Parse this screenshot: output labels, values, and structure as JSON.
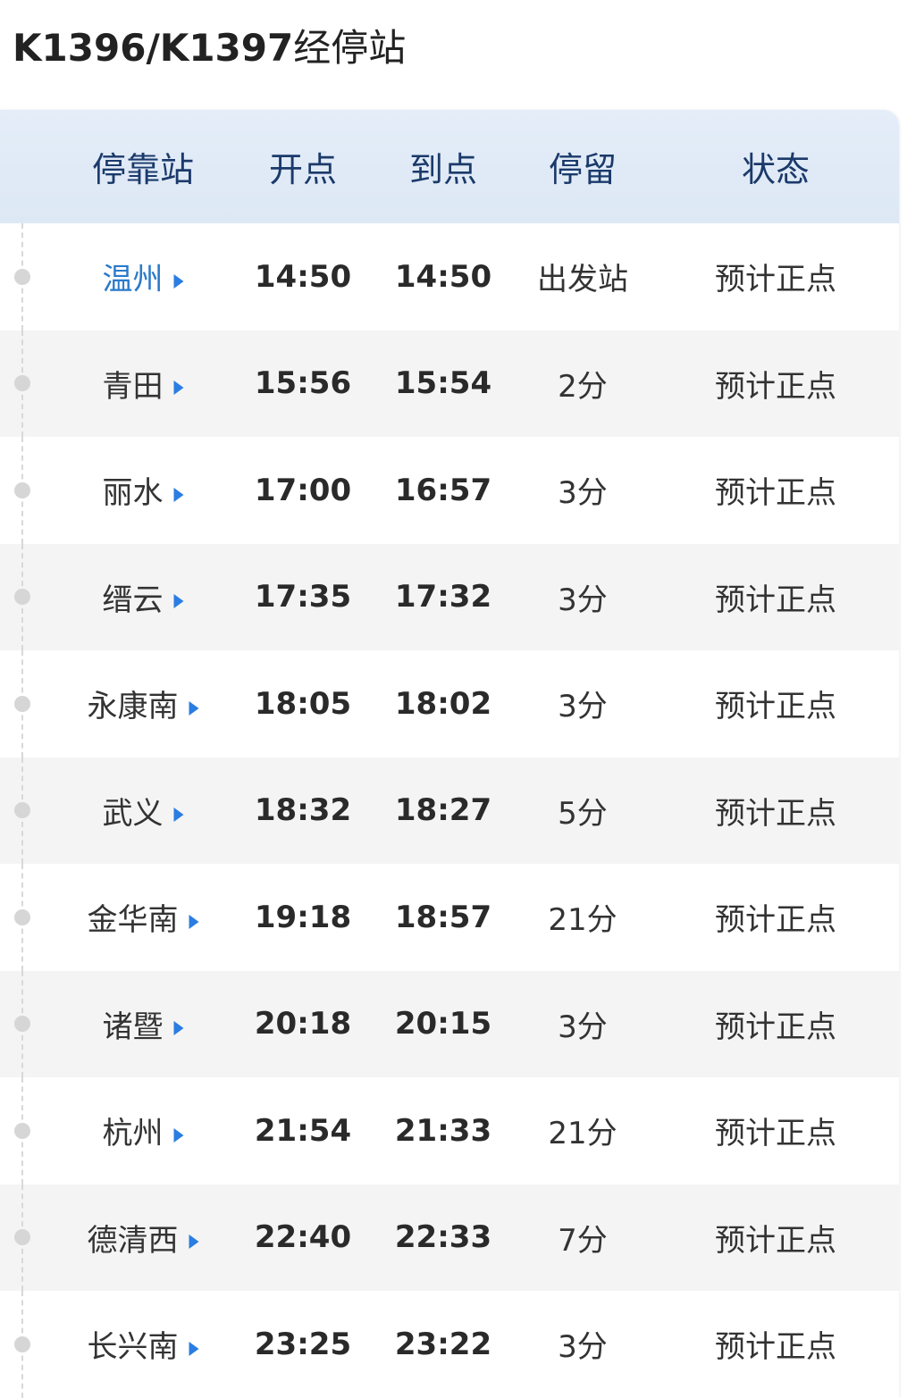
{
  "title": {
    "train": "K1396/K1397",
    "suffix": "经停站"
  },
  "colors": {
    "accent": "#2a7de1",
    "header_bg": "#e0eaf6",
    "header_text": "#1b3a6b"
  },
  "headers": [
    "停靠站",
    "开点",
    "到点",
    "停留",
    "状态"
  ],
  "rows": [
    {
      "station": "温州",
      "depart": "14:50",
      "arrive": "14:50",
      "stop": "出发站",
      "status": "预计正点"
    },
    {
      "station": "青田",
      "depart": "15:56",
      "arrive": "15:54",
      "stop": "2分",
      "status": "预计正点"
    },
    {
      "station": "丽水",
      "depart": "17:00",
      "arrive": "16:57",
      "stop": "3分",
      "status": "预计正点"
    },
    {
      "station": "缙云",
      "depart": "17:35",
      "arrive": "17:32",
      "stop": "3分",
      "status": "预计正点"
    },
    {
      "station": "永康南",
      "depart": "18:05",
      "arrive": "18:02",
      "stop": "3分",
      "status": "预计正点"
    },
    {
      "station": "武义",
      "depart": "18:32",
      "arrive": "18:27",
      "stop": "5分",
      "status": "预计正点"
    },
    {
      "station": "金华南",
      "depart": "19:18",
      "arrive": "18:57",
      "stop": "21分",
      "status": "预计正点"
    },
    {
      "station": "诸暨",
      "depart": "20:18",
      "arrive": "20:15",
      "stop": "3分",
      "status": "预计正点"
    },
    {
      "station": "杭州",
      "depart": "21:54",
      "arrive": "21:33",
      "stop": "21分",
      "status": "预计正点"
    },
    {
      "station": "德清西",
      "depart": "22:40",
      "arrive": "22:33",
      "stop": "7分",
      "status": "预计正点"
    },
    {
      "station": "长兴南",
      "depart": "23:25",
      "arrive": "23:22",
      "stop": "3分",
      "status": "预计正点"
    }
  ]
}
